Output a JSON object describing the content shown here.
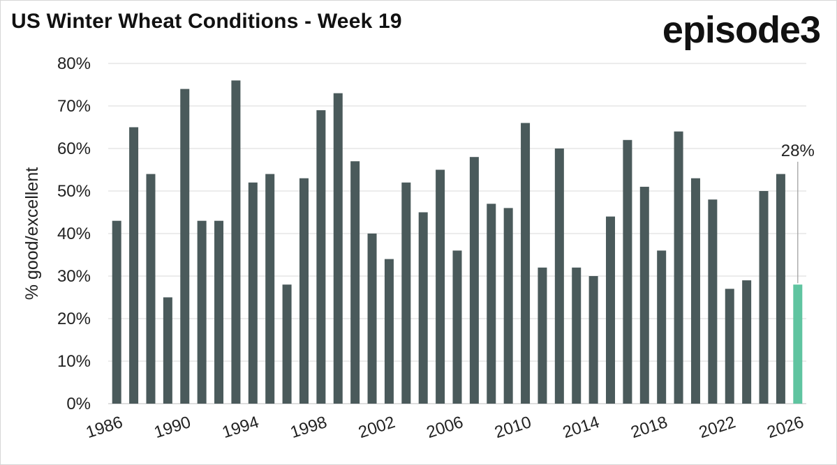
{
  "title": "US Winter Wheat Conditions - Week 19",
  "logo": "episode3",
  "chart_data": {
    "type": "bar",
    "title": "US Winter Wheat Conditions - Week 19",
    "xlabel": "",
    "ylabel": "% good/excellent",
    "ylim": [
      0,
      80
    ],
    "yticks": [
      "0%",
      "10%",
      "20%",
      "30%",
      "40%",
      "50%",
      "60%",
      "70%",
      "80%"
    ],
    "grid": true,
    "categories": [
      1986,
      1987,
      1988,
      1989,
      1990,
      1991,
      1992,
      1993,
      1994,
      1995,
      1996,
      1997,
      1998,
      1999,
      2000,
      2001,
      2002,
      2003,
      2004,
      2005,
      2006,
      2007,
      2008,
      2009,
      2010,
      2011,
      2012,
      2013,
      2014,
      2015,
      2016,
      2017,
      2018,
      2019,
      2020,
      2021,
      2022,
      2023,
      2024,
      2025,
      2026
    ],
    "xtick_labels": [
      "1986",
      "1990",
      "1994",
      "1998",
      "2002",
      "2006",
      "2010",
      "2014",
      "2018",
      "2022",
      "2026"
    ],
    "values": [
      43,
      65,
      54,
      25,
      74,
      43,
      43,
      76,
      52,
      54,
      28,
      53,
      69,
      73,
      57,
      40,
      34,
      52,
      45,
      55,
      36,
      58,
      47,
      46,
      66,
      32,
      60,
      32,
      30,
      44,
      62,
      51,
      36,
      64,
      53,
      48,
      27,
      29,
      50,
      54,
      28
    ],
    "bar_color": "#4a5a5b",
    "highlight_color": "#5fc4a0",
    "highlight_category": 2026,
    "annotation": {
      "category": 2026,
      "text": "28%"
    }
  }
}
